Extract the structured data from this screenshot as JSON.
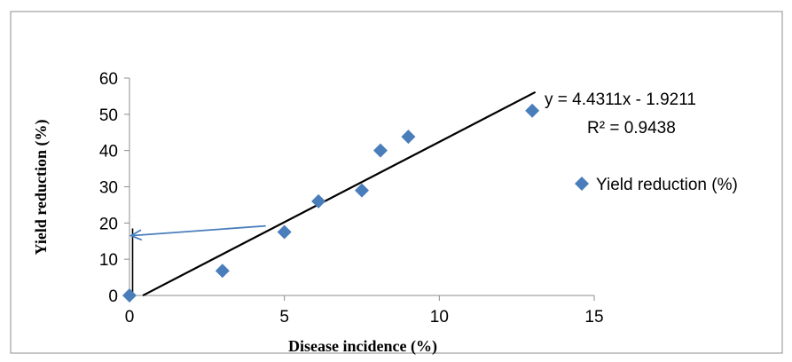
{
  "chart_data": {
    "type": "scatter",
    "xlabel": "Disease incidence (%)",
    "ylabel": "Yield reduction (%)",
    "xlim": [
      0,
      15
    ],
    "ylim": [
      0,
      60
    ],
    "xticks": [
      0,
      5,
      10,
      15
    ],
    "yticks": [
      0,
      10,
      20,
      30,
      40,
      50,
      60
    ],
    "grid": false,
    "legend_position": "right",
    "marker_color": "#4a7ebb",
    "series": [
      {
        "name": "Yield reduction (%)",
        "marker": "diamond",
        "points": [
          {
            "x": 0,
            "y": 0
          },
          {
            "x": 3,
            "y": 6.8
          },
          {
            "x": 5,
            "y": 17.5
          },
          {
            "x": 6.1,
            "y": 26
          },
          {
            "x": 7.5,
            "y": 29
          },
          {
            "x": 8.1,
            "y": 40
          },
          {
            "x": 9,
            "y": 43.8
          },
          {
            "x": 13,
            "y": 51
          }
        ]
      }
    ],
    "trendline": {
      "type": "linear",
      "slope": 4.4311,
      "intercept": -1.9211,
      "x_range": [
        0.43,
        13.1
      ],
      "color": "#000000",
      "equation_label": "y = 4.4311x - 1.9211",
      "r2_label": "R² = 0.9438"
    },
    "annotation_arrow": {
      "color": "#4a7ebb",
      "from": {
        "x": 4.4,
        "y": 19.2
      },
      "to": {
        "x": 0.05,
        "y": 16.5
      }
    },
    "reference_line": {
      "color": "#000000",
      "x": 0.1,
      "y_range": [
        0,
        18.5
      ]
    }
  }
}
